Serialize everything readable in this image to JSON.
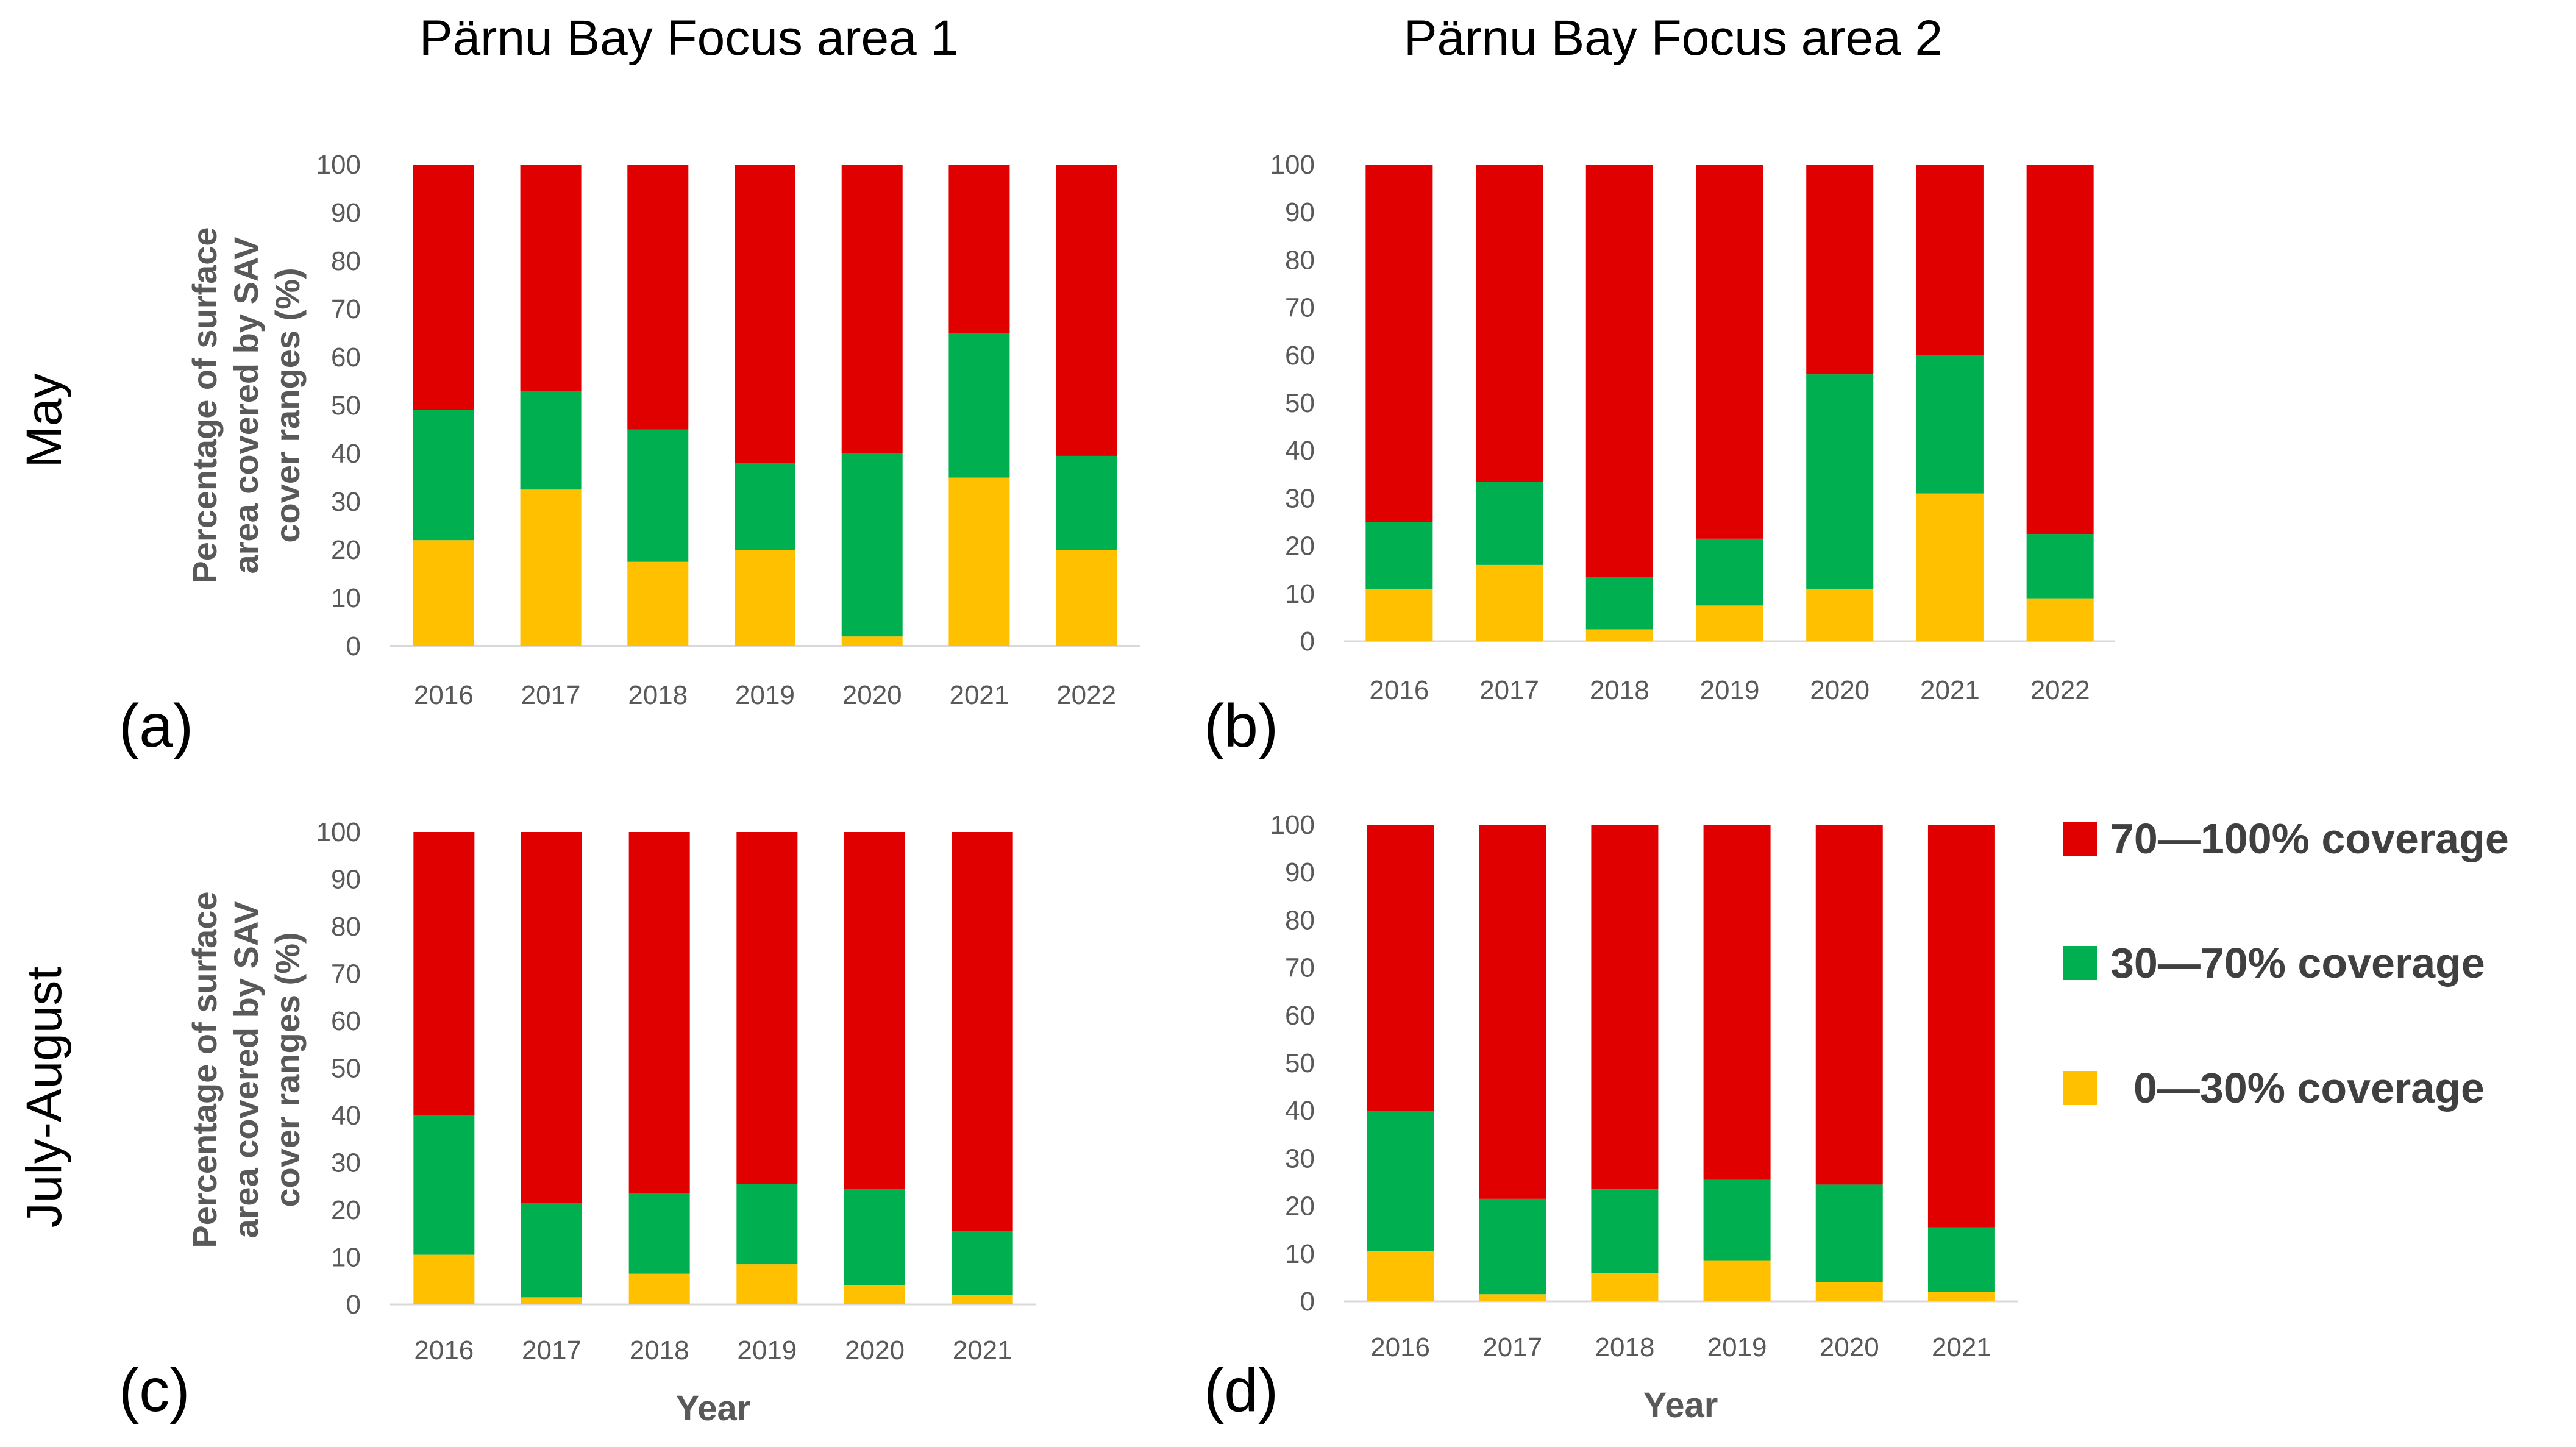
{
  "figure": {
    "column_titles": [
      "Pärnu Bay Focus area 1",
      "Pärnu Bay Focus area 2"
    ],
    "row_labels": [
      "May",
      "July-August"
    ]
  },
  "legend": [
    {
      "label": "70—100% coverage",
      "color": "#e00000"
    },
    {
      "label": "30—70% coverage",
      "color": "#00b050"
    },
    {
      "label": "0—30% coverage",
      "color": "#ffc000"
    }
  ],
  "chart_data": [
    {
      "type": "bar",
      "stacked": true,
      "panel": "(a)",
      "title": "Pärnu Bay Focus area 1",
      "ylabel_lines": [
        "Percentage of surface",
        "area covered by SAV",
        "cover ranges (%)"
      ],
      "xlabel": "",
      "ylim": [
        0,
        100
      ],
      "yticks": [
        "0",
        "10",
        "20",
        "30",
        "40",
        "50",
        "60",
        "70",
        "80",
        "90",
        "100"
      ],
      "categories": [
        "2016",
        "2017",
        "2018",
        "2019",
        "2020",
        "2021",
        "2022"
      ],
      "series": [
        {
          "name": "0—30% coverage",
          "color": "#ffc000",
          "values": [
            22,
            32.5,
            17.5,
            20,
            2,
            35,
            20
          ]
        },
        {
          "name": "30—70% coverage",
          "color": "#00b050",
          "values": [
            27,
            20.5,
            27.5,
            18,
            38,
            30,
            19.5
          ]
        },
        {
          "name": "70—100% coverage",
          "color": "#e00000",
          "values": [
            51,
            47,
            55,
            62,
            60,
            35,
            60.5
          ]
        }
      ]
    },
    {
      "type": "bar",
      "stacked": true,
      "panel": "(b)",
      "title": "Pärnu Bay Focus area 2",
      "ylabel_lines": [],
      "xlabel": "",
      "ylim": [
        0,
        100
      ],
      "yticks": [
        "0",
        "10",
        "20",
        "30",
        "40",
        "50",
        "60",
        "70",
        "80",
        "90",
        "100"
      ],
      "categories": [
        "2016",
        "2017",
        "2018",
        "2019",
        "2020",
        "2021",
        "2022"
      ],
      "series": [
        {
          "name": "0—30% coverage",
          "color": "#ffc000",
          "values": [
            11,
            16,
            2.5,
            7.5,
            11,
            31,
            9
          ]
        },
        {
          "name": "30—70% coverage",
          "color": "#00b050",
          "values": [
            14,
            17.5,
            11,
            14,
            45,
            29,
            13.5
          ]
        },
        {
          "name": "70—100% coverage",
          "color": "#e00000",
          "values": [
            75,
            66.5,
            86.5,
            78.5,
            44,
            40,
            77.5
          ]
        }
      ]
    },
    {
      "type": "bar",
      "stacked": true,
      "panel": "(c)",
      "title": "Pärnu Bay Focus area 1",
      "ylabel_lines": [
        "Percentage of surface",
        "area covered by SAV",
        "cover ranges (%)"
      ],
      "xlabel": "Year",
      "ylim": [
        0,
        100
      ],
      "yticks": [
        "0",
        "10",
        "20",
        "30",
        "40",
        "50",
        "60",
        "70",
        "80",
        "90",
        "100"
      ],
      "categories": [
        "2016",
        "2017",
        "2018",
        "2019",
        "2020",
        "2021"
      ],
      "series": [
        {
          "name": "0—30% coverage",
          "color": "#ffc000",
          "values": [
            10.5,
            1.5,
            6.5,
            8.5,
            4,
            2
          ]
        },
        {
          "name": "30—70% coverage",
          "color": "#00b050",
          "values": [
            29.5,
            20,
            17,
            17,
            20.5,
            13.5
          ]
        },
        {
          "name": "70—100% coverage",
          "color": "#e00000",
          "values": [
            60,
            78.5,
            76.5,
            74.5,
            75.5,
            84.5
          ]
        }
      ]
    },
    {
      "type": "bar",
      "stacked": true,
      "panel": "(d)",
      "title": "Pärnu Bay Focus area 2",
      "ylabel_lines": [],
      "xlabel": "Year",
      "ylim": [
        0,
        100
      ],
      "yticks": [
        "0",
        "10",
        "20",
        "30",
        "40",
        "50",
        "60",
        "70",
        "80",
        "90",
        "100"
      ],
      "categories": [
        "2016",
        "2017",
        "2018",
        "2019",
        "2020",
        "2021"
      ],
      "series": [
        {
          "name": "0—30% coverage",
          "color": "#ffc000",
          "values": [
            10.5,
            1.5,
            6,
            8.5,
            4,
            2
          ]
        },
        {
          "name": "30—70% coverage",
          "color": "#00b050",
          "values": [
            29.5,
            20,
            17.5,
            17,
            20.5,
            13.5
          ]
        },
        {
          "name": "70—100% coverage",
          "color": "#e00000",
          "values": [
            60,
            78.5,
            76.5,
            74.5,
            75.5,
            84.5
          ]
        }
      ]
    }
  ]
}
